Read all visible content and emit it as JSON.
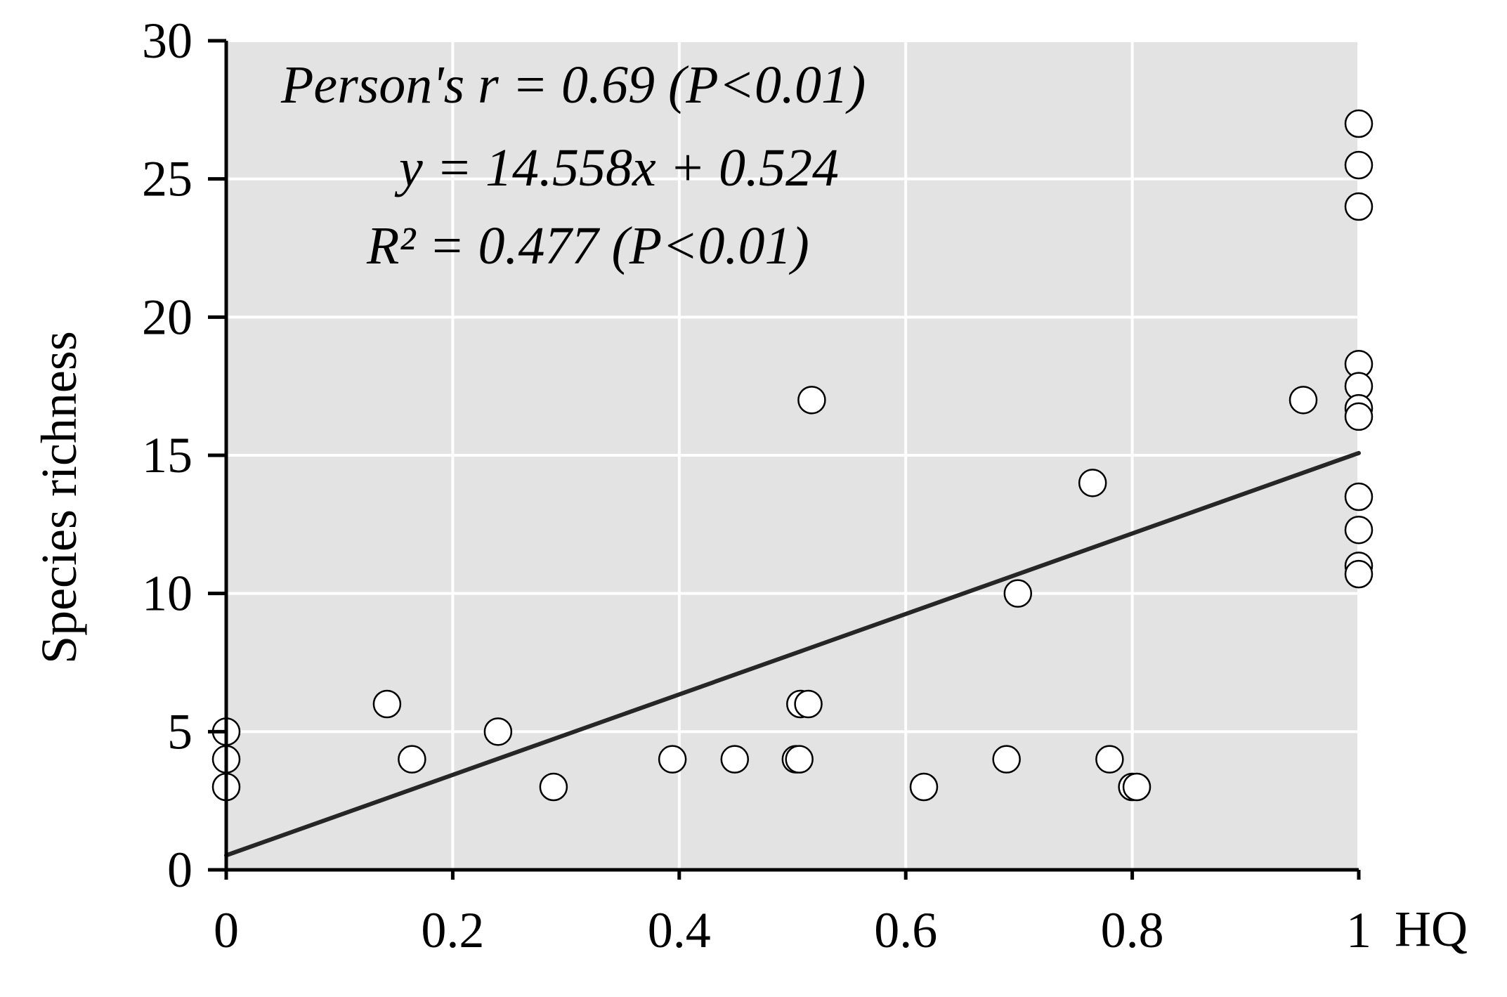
{
  "chart_data": {
    "type": "scatter",
    "title": "",
    "xlabel": "HQ",
    "ylabel": "Species richness",
    "xlim": [
      0,
      1
    ],
    "ylim": [
      0,
      30
    ],
    "xticks": [
      0,
      0.2,
      0.4,
      0.6,
      0.8,
      1
    ],
    "xtick_labels": [
      "0",
      "0.2",
      "0.4",
      "0.6",
      "0.8",
      "1"
    ],
    "yticks": [
      0,
      5,
      10,
      15,
      20,
      25,
      30
    ],
    "ytick_labels": [
      "0",
      "5",
      "10",
      "15",
      "20",
      "25",
      "30"
    ],
    "grid": true,
    "background_color": "#e3e3e3",
    "marker_face_color": "#ffffff",
    "marker_edge_color": "#000000",
    "line_color": "#262626",
    "annotations": [
      "Person's r = 0.69  (P<0.01)",
      "y = 14.558x + 0.524",
      "R² = 0.477  (P<0.01)"
    ],
    "trendline": {
      "slope": 14.558,
      "intercept": 0.524,
      "x_range": [
        0,
        1
      ]
    },
    "points": [
      {
        "x": 0,
        "y": 5
      },
      {
        "x": 0,
        "y": 4
      },
      {
        "x": 0,
        "y": 3
      },
      {
        "x": 0.142,
        "y": 6
      },
      {
        "x": 0.164,
        "y": 4
      },
      {
        "x": 0.24,
        "y": 5
      },
      {
        "x": 0.289,
        "y": 3
      },
      {
        "x": 0.394,
        "y": 4
      },
      {
        "x": 0.449,
        "y": 4
      },
      {
        "x": 0.503,
        "y": 4
      },
      {
        "x": 0.506,
        "y": 4
      },
      {
        "x": 0.507,
        "y": 6
      },
      {
        "x": 0.514,
        "y": 6
      },
      {
        "x": 0.517,
        "y": 17
      },
      {
        "x": 0.616,
        "y": 3
      },
      {
        "x": 0.689,
        "y": 4
      },
      {
        "x": 0.699,
        "y": 10
      },
      {
        "x": 0.765,
        "y": 14
      },
      {
        "x": 0.78,
        "y": 4
      },
      {
        "x": 0.8,
        "y": 3
      },
      {
        "x": 0.804,
        "y": 3
      },
      {
        "x": 0.951,
        "y": 17
      },
      {
        "x": 1,
        "y": 27
      },
      {
        "x": 1,
        "y": 25.5
      },
      {
        "x": 1,
        "y": 24
      },
      {
        "x": 1,
        "y": 18.3
      },
      {
        "x": 1,
        "y": 17.5
      },
      {
        "x": 1,
        "y": 16.7
      },
      {
        "x": 1,
        "y": 16.4
      },
      {
        "x": 1,
        "y": 13.5
      },
      {
        "x": 1,
        "y": 12.3
      },
      {
        "x": 1,
        "y": 11
      },
      {
        "x": 1,
        "y": 10.7
      }
    ]
  }
}
